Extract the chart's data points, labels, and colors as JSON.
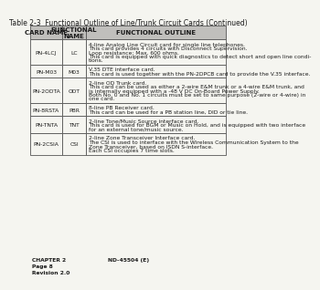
{
  "title": "Table 2-3  Functional Outline of Line/Trunk Circuit Cards (Continued)",
  "headers": [
    "CARD NAME",
    "FUNCTIONAL\nNAME",
    "FUNCTIONAL OUTLINE"
  ],
  "rows": [
    {
      "card": "PN-4LCJ",
      "func": "LC",
      "outline": [
        "4-line Analog Line Circuit card for single line telephones.",
        "This card provides 4 circuits with Disconnect Supervision.",
        "Loop resistance: Max. 600 ohms.",
        "This card is equipped with quick diagnostics to detect short and open line condi-",
        "tions."
      ]
    },
    {
      "card": "PN-M03",
      "func": "M03",
      "outline": [
        "V.35 DTE interface card.",
        "This card is used together with the PN-2DPCB card to provide the V.35 interface."
      ]
    },
    {
      "card": "PN-2ODTA",
      "func": "ODT",
      "outline": [
        "2-line OD Trunk card.",
        "This card can be used as either a 2-wire E&M trunk or a 4-wire E&M trunk, and",
        "is internally equipped with a -48 V DC On-Board Power Supply.",
        "Both No. 0 and No. 1 circuits must be set to same purpose (2-wire or 4-wire) in",
        "one card."
      ]
    },
    {
      "card": "PN-8RSTA",
      "func": "PBR",
      "outline": [
        "8-line PB Receiver card.",
        "This card can be used for a PB station line, DID or tie line."
      ]
    },
    {
      "card": "PN-TNTA",
      "func": "TNT",
      "outline": [
        "2-line Tone/Music Source interface card.",
        "This card is used for BGM or Music on Hold, and is equipped with two interface",
        "for an external tone/music source."
      ]
    },
    {
      "card": "PN-2CSIA",
      "func": "CSI",
      "outline": [
        "2-line Zone Transceiver Interface card.",
        "The CSI is used to interface with the Wireless Communication System to the",
        "Zone Transceiver, based on ISDN S-interface.",
        "Each CSI occupies 7 time slots."
      ]
    }
  ],
  "footer_left": "CHAPTER 2\nPage 8\nRevision 2.0",
  "footer_right": "ND-45504 (E)",
  "bg_color": "#f5f5f0",
  "header_bg": "#c0bfbc",
  "text_color": "#1a1a1a",
  "border_color": "#555555",
  "title_fontsize": 5.5,
  "header_fontsize": 5.0,
  "cell_fontsize": 4.3,
  "footer_fontsize": 4.3
}
